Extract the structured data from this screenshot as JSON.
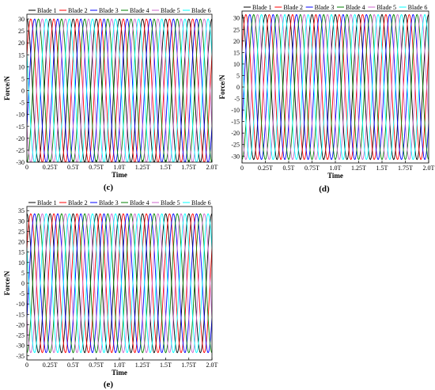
{
  "chart_data": [
    {
      "type": "line",
      "caption": "(c)",
      "xlabel": "Time",
      "ylabel": "Force/N",
      "xlim": [
        0,
        2
      ],
      "ylim": [
        -30,
        32
      ],
      "x_tick_labels": [
        "0",
        "0.25T",
        "0.5T",
        "0.75T",
        "1.0T",
        "1.25T",
        "1.5T",
        "1.75T",
        "2.0T"
      ],
      "y_ticks": [
        30,
        25,
        20,
        15,
        10,
        5,
        0,
        -5,
        -10,
        -15,
        -20,
        -25,
        -30
      ],
      "amplitude": 30,
      "frequency_per_T": 4,
      "series": [
        {
          "name": "Blade 1",
          "color": "#000000",
          "phase_T": 0.0
        },
        {
          "name": "Blade 2",
          "color": "#ff0000",
          "phase_T": 0.0417
        },
        {
          "name": "Blade 3",
          "color": "#0000ff",
          "phase_T": 0.0833
        },
        {
          "name": "Blade 4",
          "color": "#008000",
          "phase_T": 0.125
        },
        {
          "name": "Blade 5",
          "color": "#cc66cc",
          "phase_T": 0.1667
        },
        {
          "name": "Blade 6",
          "color": "#00ffff",
          "phase_T": 0.2083
        }
      ]
    },
    {
      "type": "line",
      "caption": "(d)",
      "xlabel": "Time",
      "ylabel": "Force/N",
      "xlim": [
        0,
        2
      ],
      "ylim": [
        -33,
        33
      ],
      "x_tick_labels": [
        "0",
        "0.25T",
        "0.5T",
        "0.75T",
        "1.0T",
        "1.25T",
        "1.5T",
        "1.75T",
        "2.0T"
      ],
      "y_ticks": [
        30,
        25,
        20,
        15,
        10,
        5,
        0,
        -5,
        -10,
        -15,
        -20,
        -25,
        -30
      ],
      "amplitude": 31.5,
      "frequency_per_T": 4,
      "series": [
        {
          "name": "Blade 1",
          "color": "#000000",
          "phase_T": 0.0
        },
        {
          "name": "Blade 2",
          "color": "#ff0000",
          "phase_T": 0.0417
        },
        {
          "name": "Blade 3",
          "color": "#0000ff",
          "phase_T": 0.0833
        },
        {
          "name": "Blade 4",
          "color": "#008000",
          "phase_T": 0.125
        },
        {
          "name": "Blade 5",
          "color": "#cc66cc",
          "phase_T": 0.1667
        },
        {
          "name": "Blade 6",
          "color": "#00ffff",
          "phase_T": 0.2083
        }
      ]
    },
    {
      "type": "line",
      "caption": "(e)",
      "xlabel": "Time",
      "ylabel": "Force/N",
      "xlim": [
        0,
        2
      ],
      "ylim": [
        -37,
        37
      ],
      "x_tick_labels": [
        "0",
        "0.25T",
        "0.5T",
        "0.75T",
        "1.0T",
        "1.25T",
        "1.5T",
        "1.75T",
        "2.0T"
      ],
      "y_ticks": [
        35,
        30,
        25,
        20,
        15,
        10,
        5,
        0,
        -5,
        -10,
        -15,
        -20,
        -25,
        -30,
        -35
      ],
      "amplitude": 33.5,
      "frequency_per_T": 4,
      "series": [
        {
          "name": "Blade 1",
          "color": "#000000",
          "phase_T": 0.0
        },
        {
          "name": "Blade 2",
          "color": "#ff0000",
          "phase_T": 0.0417
        },
        {
          "name": "Blade 3",
          "color": "#0000ff",
          "phase_T": 0.0833
        },
        {
          "name": "Blade 4",
          "color": "#008000",
          "phase_T": 0.125
        },
        {
          "name": "Blade 5",
          "color": "#cc66cc",
          "phase_T": 0.1667
        },
        {
          "name": "Blade 6",
          "color": "#00ffff",
          "phase_T": 0.2083
        }
      ]
    }
  ]
}
